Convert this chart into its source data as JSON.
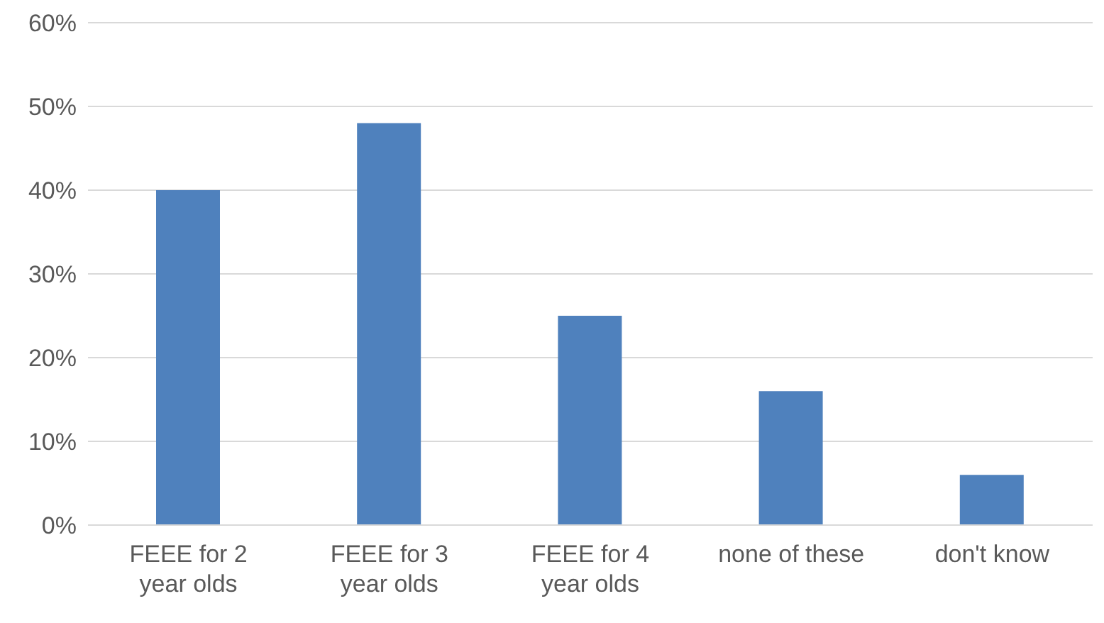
{
  "chart_data": {
    "type": "bar",
    "categories": [
      "FEEE for 2 year olds",
      "FEEE for 3 year olds",
      "FEEE for 4 year olds",
      "none of these",
      "don't know"
    ],
    "values": [
      40,
      48,
      25,
      16,
      6
    ],
    "color": "#4f81bd",
    "ylim": [
      0,
      60
    ],
    "yticks": [
      {
        "value": 0,
        "label": "0%"
      },
      {
        "value": 10,
        "label": "10%"
      },
      {
        "value": 20,
        "label": "20%"
      },
      {
        "value": 30,
        "label": "30%"
      },
      {
        "value": 40,
        "label": "40%"
      },
      {
        "value": 50,
        "label": "50%"
      },
      {
        "value": 60,
        "label": "60%"
      }
    ],
    "grid": "y"
  }
}
